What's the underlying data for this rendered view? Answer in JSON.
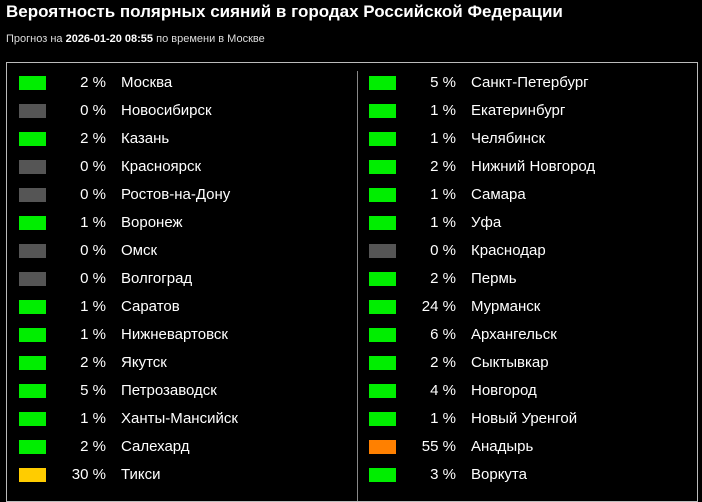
{
  "header": {
    "title": "Вероятность полярных сияний в городах Российской Федерации",
    "subtitle_prefix": "Прогноз на",
    "subtitle_time": "2026-01-20 08:55",
    "subtitle_suffix": "по времени в Москве"
  },
  "columns": [
    [
      {
        "percent": "2 %",
        "city": "Москва",
        "color": "#00ee00"
      },
      {
        "percent": "0 %",
        "city": "Новосибирск",
        "color": "#555555"
      },
      {
        "percent": "2 %",
        "city": "Казань",
        "color": "#00ee00"
      },
      {
        "percent": "0 %",
        "city": "Красноярск",
        "color": "#555555"
      },
      {
        "percent": "0 %",
        "city": "Ростов-на-Дону",
        "color": "#555555"
      },
      {
        "percent": "1 %",
        "city": "Воронеж",
        "color": "#00ee00"
      },
      {
        "percent": "0 %",
        "city": "Омск",
        "color": "#555555"
      },
      {
        "percent": "0 %",
        "city": "Волгоград",
        "color": "#555555"
      },
      {
        "percent": "1 %",
        "city": "Саратов",
        "color": "#00ee00"
      },
      {
        "percent": "1 %",
        "city": "Нижневартовск",
        "color": "#00ee00"
      },
      {
        "percent": "2 %",
        "city": "Якутск",
        "color": "#00ee00"
      },
      {
        "percent": "5 %",
        "city": "Петрозаводск",
        "color": "#00ee00"
      },
      {
        "percent": "1 %",
        "city": "Ханты-Мансийск",
        "color": "#00ee00"
      },
      {
        "percent": "2 %",
        "city": "Салехард",
        "color": "#00ee00"
      },
      {
        "percent": "30 %",
        "city": "Тикси",
        "color": "#ffcc00"
      }
    ],
    [
      {
        "percent": "5 %",
        "city": "Санкт-Петербург",
        "color": "#00ee00"
      },
      {
        "percent": "1 %",
        "city": "Екатеринбург",
        "color": "#00ee00"
      },
      {
        "percent": "1 %",
        "city": "Челябинск",
        "color": "#00ee00"
      },
      {
        "percent": "2 %",
        "city": "Нижний Новгород",
        "color": "#00ee00"
      },
      {
        "percent": "1 %",
        "city": "Самара",
        "color": "#00ee00"
      },
      {
        "percent": "1 %",
        "city": "Уфа",
        "color": "#00ee00"
      },
      {
        "percent": "0 %",
        "city": "Краснодар",
        "color": "#555555"
      },
      {
        "percent": "2 %",
        "city": "Пермь",
        "color": "#00ee00"
      },
      {
        "percent": "24 %",
        "city": "Мурманск",
        "color": "#00ee00"
      },
      {
        "percent": "6 %",
        "city": "Архангельск",
        "color": "#00ee00"
      },
      {
        "percent": "2 %",
        "city": "Сыктывкар",
        "color": "#00ee00"
      },
      {
        "percent": "4 %",
        "city": "Новгород",
        "color": "#00ee00"
      },
      {
        "percent": "1 %",
        "city": "Новый Уренгой",
        "color": "#00ee00"
      },
      {
        "percent": "55 %",
        "city": "Анадырь",
        "color": "#ff8000"
      },
      {
        "percent": "3 %",
        "city": "Воркута",
        "color": "#00ee00"
      }
    ]
  ]
}
